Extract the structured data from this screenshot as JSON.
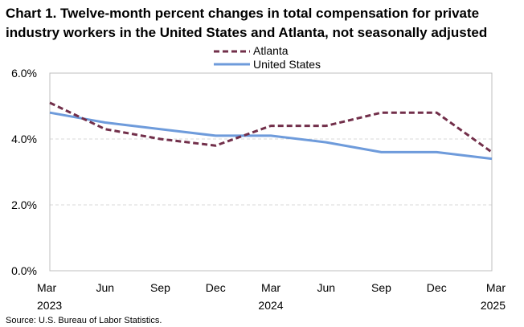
{
  "chart_data": {
    "type": "line",
    "title_lines": [
      "Chart 1. Twelve-month percent changes in total compensation for private",
      "industry workers in the United States and Atlanta, not seasonally adjusted"
    ],
    "xlabel": "",
    "ylabel": "",
    "ylim": [
      0,
      6
    ],
    "y_ticks": [
      0,
      2,
      4,
      6
    ],
    "y_tick_labels": [
      "0.0%",
      "2.0%",
      "4.0%",
      "6.0%"
    ],
    "grid": true,
    "legend_position": "top-center",
    "categories": [
      {
        "month": "Mar",
        "year": "2023"
      },
      {
        "month": "Jun",
        "year": ""
      },
      {
        "month": "Sep",
        "year": ""
      },
      {
        "month": "Dec",
        "year": ""
      },
      {
        "month": "Mar",
        "year": "2024"
      },
      {
        "month": "Jun",
        "year": ""
      },
      {
        "month": "Sep",
        "year": ""
      },
      {
        "month": "Dec",
        "year": ""
      },
      {
        "month": "Mar",
        "year": "2025"
      }
    ],
    "series": [
      {
        "name": "Atlanta",
        "color": "#722F4A",
        "style": "dashed",
        "values": [
          5.1,
          4.3,
          4.0,
          3.8,
          4.4,
          4.4,
          4.8,
          4.8,
          3.6
        ]
      },
      {
        "name": "United States",
        "color": "#6E9BDB",
        "style": "solid",
        "values": [
          4.8,
          4.5,
          4.3,
          4.1,
          4.1,
          3.9,
          3.6,
          3.6,
          3.4
        ]
      }
    ],
    "source": "Source: U.S. Bureau of Labor Statistics."
  }
}
